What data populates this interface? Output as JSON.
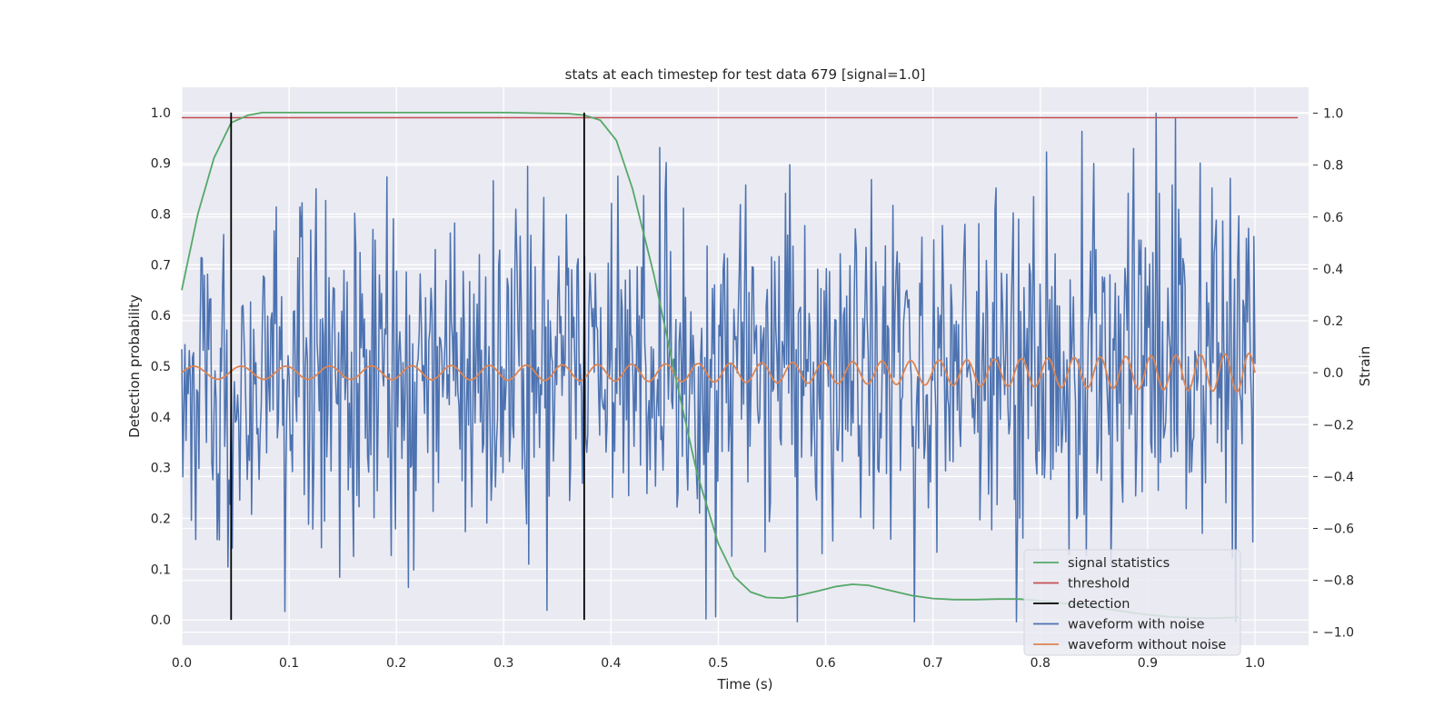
{
  "chart_data": {
    "type": "line",
    "title": "stats at each timestep for test data 679 [signal=1.0]",
    "xlabel": "Time (s)",
    "ylabel": "Detection probability",
    "y2label": "Strain",
    "xlim": [
      0.0,
      1.05
    ],
    "ylim": [
      -0.05,
      1.05
    ],
    "y2lim": [
      -1.05,
      1.1
    ],
    "xticks": [
      "0.0",
      "0.1",
      "0.2",
      "0.3",
      "0.4",
      "0.5",
      "0.6",
      "0.7",
      "0.8",
      "0.9",
      "1.0"
    ],
    "yticks": [
      "0.0",
      "0.1",
      "0.2",
      "0.3",
      "0.4",
      "0.5",
      "0.6",
      "0.7",
      "0.8",
      "0.9",
      "1.0"
    ],
    "y2ticks": [
      "−1.0",
      "−0.8",
      "−0.6",
      "−0.4",
      "−0.2",
      "0.0",
      "0.2",
      "0.4",
      "0.6",
      "0.8",
      "1.0"
    ],
    "grid": true,
    "legend_position": "lower-right",
    "colors": {
      "background": "#eaeaf2",
      "grid": "#ffffff",
      "signal_statistics": "#55a868",
      "threshold": "#c44e52",
      "detection": "#000000",
      "waveform_with_noise": "#4c72b0",
      "waveform_without_noise": "#dd8452"
    },
    "series": [
      {
        "name": "signal statistics",
        "axis": "left",
        "x": [
          0.0,
          0.015,
          0.03,
          0.046,
          0.062,
          0.075,
          0.1,
          0.2,
          0.3,
          0.36,
          0.375,
          0.39,
          0.405,
          0.42,
          0.44,
          0.46,
          0.48,
          0.5,
          0.515,
          0.53,
          0.545,
          0.56,
          0.575,
          0.595,
          0.61,
          0.625,
          0.64,
          0.66,
          0.68,
          0.7,
          0.72,
          0.74,
          0.76,
          0.78,
          0.8,
          0.82,
          0.84,
          0.86,
          0.88,
          0.9,
          0.92,
          0.94,
          0.96,
          0.985
        ],
        "y": [
          0.65,
          0.8,
          0.91,
          0.98,
          0.995,
          1.0,
          1.0,
          1.0,
          1.0,
          0.998,
          0.995,
          0.985,
          0.945,
          0.85,
          0.68,
          0.48,
          0.29,
          0.15,
          0.085,
          0.055,
          0.044,
          0.043,
          0.048,
          0.058,
          0.066,
          0.07,
          0.068,
          0.058,
          0.048,
          0.042,
          0.04,
          0.04,
          0.041,
          0.041,
          0.038,
          0.033,
          0.028,
          0.022,
          0.016,
          0.01,
          0.006,
          0.004,
          0.003,
          0.005
        ]
      },
      {
        "name": "threshold",
        "axis": "left",
        "x": [
          0.0,
          1.04
        ],
        "y": [
          0.99,
          0.99
        ]
      },
      {
        "name": "detection",
        "axis": "left",
        "x": [
          0.046,
          0.375
        ],
        "y_range": [
          0.0,
          1.0
        ]
      },
      {
        "name": "waveform with noise",
        "axis": "right",
        "x_range": [
          0.0,
          1.0
        ],
        "samples": 1000,
        "amplitude_sd": 0.32,
        "y_range": [
          -0.96,
          1.0
        ],
        "peaks": [
          {
            "x": 0.908,
            "y": 1.0
          },
          {
            "x": 0.926,
            "y": 0.98
          },
          {
            "x": 0.497,
            "y": -0.94
          },
          {
            "x": 0.096,
            "y": -0.92
          }
        ]
      },
      {
        "name": "waveform without noise",
        "axis": "right",
        "x_range": [
          0.0,
          1.0
        ],
        "start_frequency_hz": 22,
        "end_frequency_hz": 45,
        "start_amplitude": 0.025,
        "end_amplitude": 0.075
      }
    ]
  }
}
